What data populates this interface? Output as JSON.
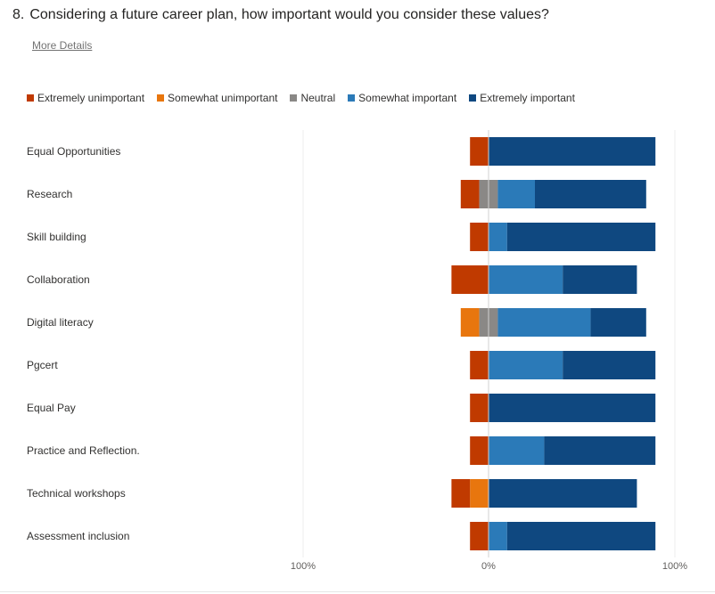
{
  "question": {
    "number": "8.",
    "text": "Considering a future career plan, how important would you consider these values?",
    "more_details": "More Details"
  },
  "colors": {
    "Extremely unimportant": "#c03a00",
    "Somewhat unimportant": "#e8760e",
    "Neutral": "#8a8886",
    "Somewhat important": "#2b7ab8",
    "Extremely important": "#0f4880"
  },
  "chart_data": {
    "type": "bar",
    "orientation": "horizontal-diverging-stacked",
    "legend_position": "top-left",
    "x_tick_labels": [
      "100%",
      "0%",
      "100%"
    ],
    "xlim": [
      -100,
      100
    ],
    "grid": false,
    "categories": [
      "Equal Opportunities",
      "Research",
      "Skill building",
      "Collaboration",
      "Digital literacy",
      "Pgcert",
      "Equal Pay",
      "Practice and Reflection.",
      "Technical workshops",
      "Assessment inclusion"
    ],
    "series": [
      {
        "name": "Extremely unimportant",
        "values": [
          10,
          10,
          10,
          20,
          0,
          10,
          10,
          10,
          10,
          10
        ]
      },
      {
        "name": "Somewhat unimportant",
        "values": [
          0,
          0,
          0,
          0,
          10,
          0,
          0,
          0,
          10,
          0
        ]
      },
      {
        "name": "Neutral",
        "values": [
          0,
          10,
          0,
          0,
          10,
          0,
          0,
          0,
          0,
          0
        ]
      },
      {
        "name": "Somewhat important",
        "values": [
          0,
          20,
          10,
          40,
          50,
          40,
          0,
          30,
          0,
          10
        ]
      },
      {
        "name": "Extremely important",
        "values": [
          90,
          60,
          80,
          40,
          30,
          50,
          90,
          60,
          80,
          80
        ]
      }
    ]
  }
}
